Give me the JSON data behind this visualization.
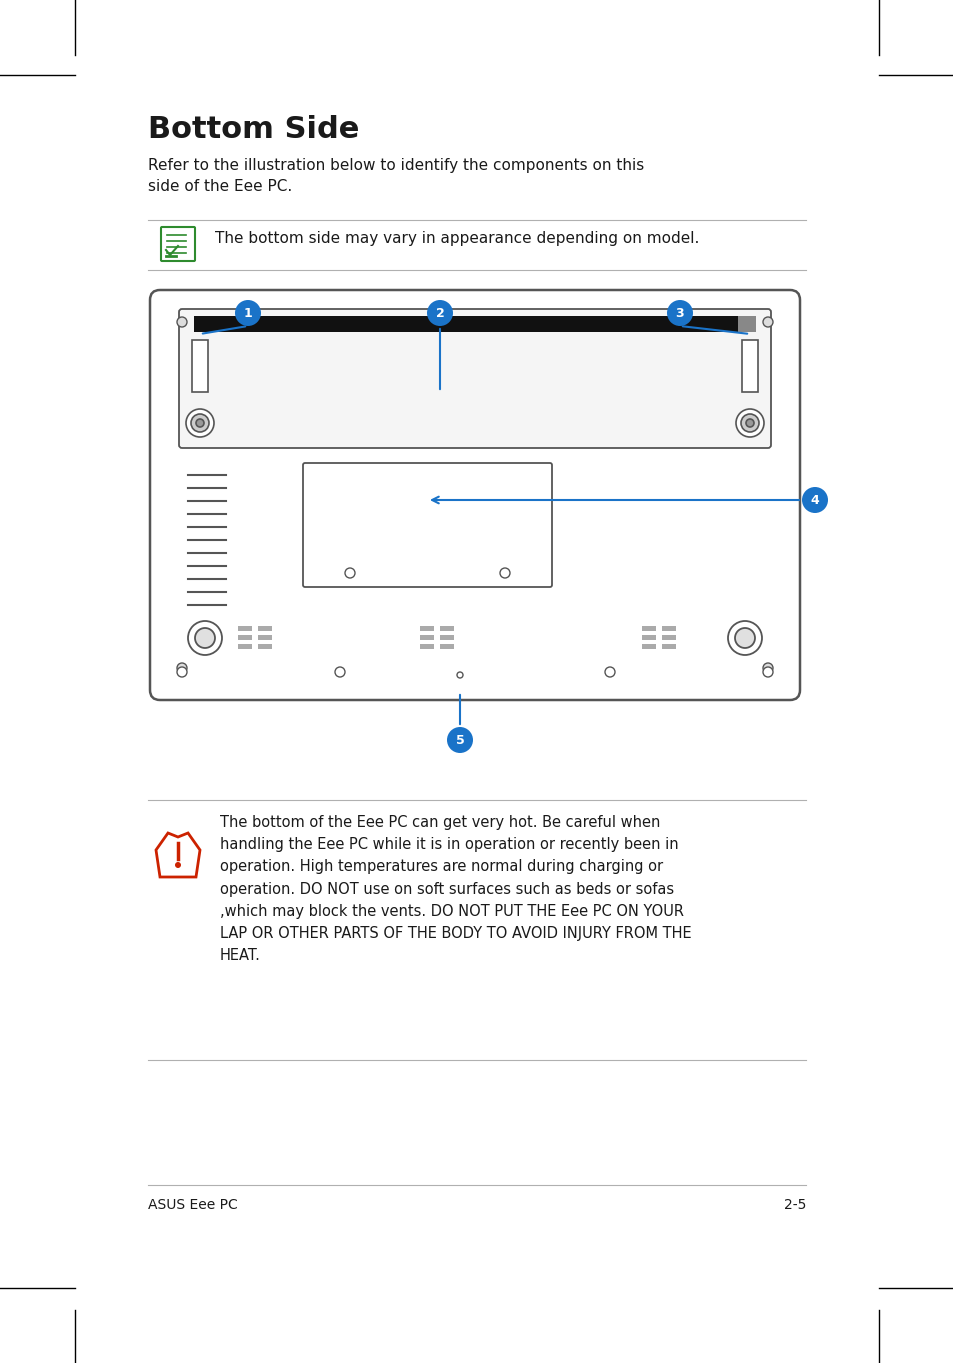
{
  "title": "Bottom Side",
  "subtitle": "Refer to the illustration below to identify the components on this\nside of the Eee PC.",
  "note_text": "The bottom side may vary in appearance depending on model.",
  "warning_text": "The bottom of the Eee PC can get very hot. Be careful when\nhandling the Eee PC while it is in operation or recently been in\noperation. High temperatures are normal during charging or\noperation. DO NOT use on soft surfaces such as beds or sofas\n,which may block the vents. DO NOT PUT THE Eee PC ON YOUR\nLAP OR OTHER PARTS OF THE BODY TO AVOID INJURY FROM THE\nHEAT.",
  "footer_left": "ASUS Eee PC",
  "footer_right": "2-5",
  "accent_color": "#1a73c8",
  "text_color": "#1a1a1a",
  "bg_color": "#ffffff",
  "line_color": "#b0b0b0",
  "device_color": "#555555",
  "note_icon_color": "#2e8b2e",
  "warn_color": "#cc2200"
}
